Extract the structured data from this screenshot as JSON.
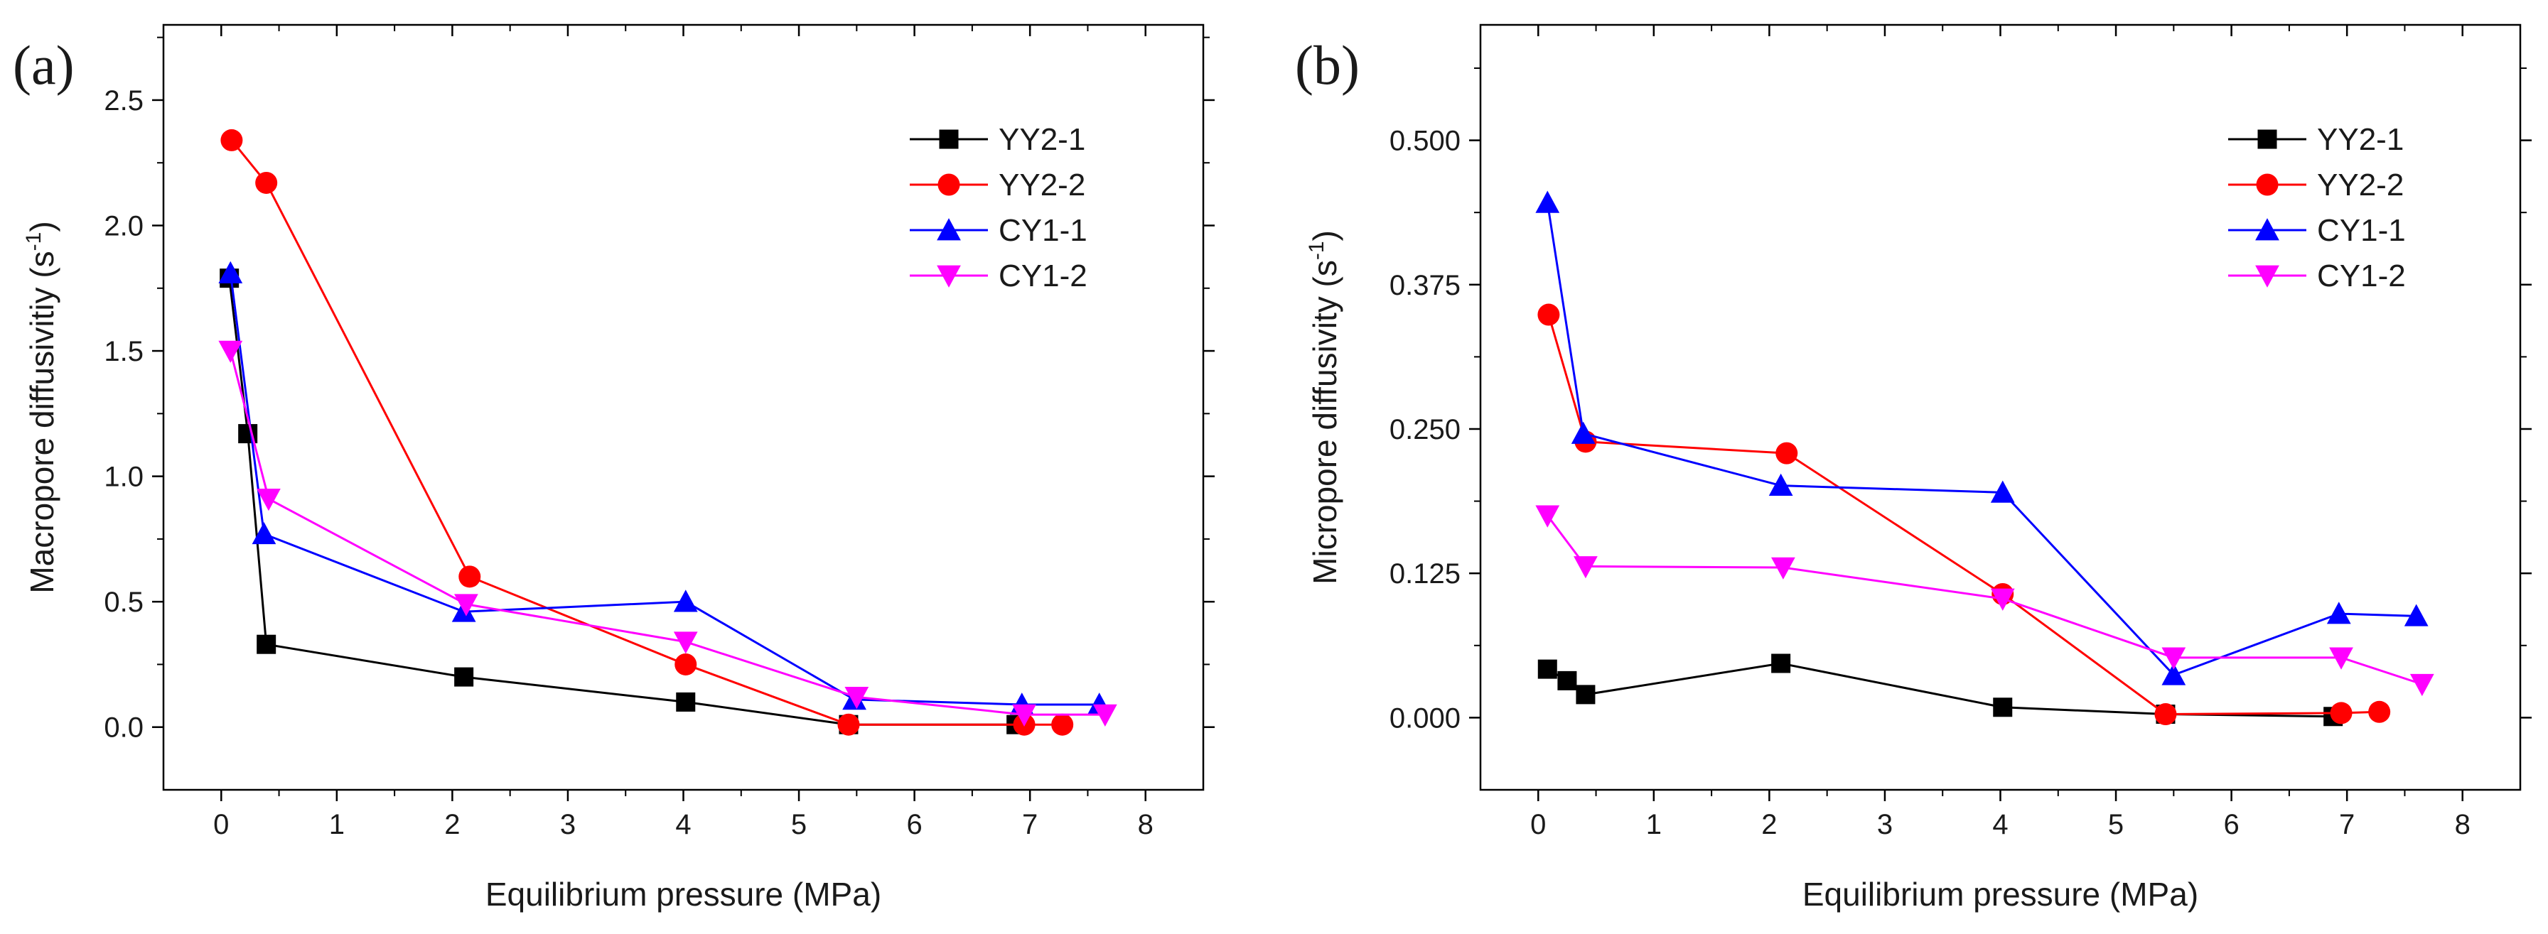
{
  "chart_data": [
    {
      "type": "line",
      "panel_label": "(a)",
      "xlabel": "Equilibrium pressure (MPa)",
      "ylabel": "Macropore diffusivitiy (s",
      "ylabel_sup": "-1",
      "ylabel_close": ")",
      "xlim": [
        -0.5,
        8.5
      ],
      "ylim": [
        -0.25,
        2.8
      ],
      "xticks": [
        0,
        1,
        2,
        3,
        4,
        5,
        6,
        7,
        8
      ],
      "xtick_labels": [
        "0",
        "1",
        "2",
        "3",
        "4",
        "5",
        "6",
        "7",
        "8"
      ],
      "yticks": [
        0,
        0.5,
        1.0,
        1.5,
        2.0,
        2.5
      ],
      "ytick_labels": [
        "0.0",
        "0.5",
        "1.0",
        "1.5",
        "2.0",
        "2.5"
      ],
      "legend_position": "top-right",
      "series": [
        {
          "name": "YY2-1",
          "color": "#000000",
          "marker": "square",
          "x": [
            0.07,
            0.23,
            0.39,
            2.1,
            4.02,
            5.43,
            6.88
          ],
          "y": [
            1.79,
            1.17,
            0.33,
            0.2,
            0.1,
            0.01,
            0.01
          ]
        },
        {
          "name": "YY2-2",
          "color": "#ff0000",
          "marker": "circle",
          "x": [
            0.09,
            0.39,
            2.15,
            4.02,
            5.43,
            6.95,
            7.28
          ],
          "y": [
            2.34,
            2.17,
            0.6,
            0.25,
            0.01,
            0.01,
            0.01
          ]
        },
        {
          "name": "CY1-1",
          "color": "#0000ff",
          "marker": "triangle-up",
          "x": [
            0.08,
            0.37,
            2.1,
            4.02,
            5.48,
            6.93,
            7.6
          ],
          "y": [
            1.81,
            0.77,
            0.46,
            0.5,
            0.11,
            0.09,
            0.09
          ]
        },
        {
          "name": "CY1-2",
          "color": "#ff00ff",
          "marker": "triangle-down",
          "x": [
            0.08,
            0.41,
            2.12,
            4.02,
            5.5,
            6.95,
            7.65
          ],
          "y": [
            1.5,
            0.91,
            0.49,
            0.34,
            0.12,
            0.05,
            0.05
          ]
        }
      ]
    },
    {
      "type": "line",
      "panel_label": "(b)",
      "xlabel": "Equilibrium pressure (MPa)",
      "ylabel": "Micropore diffusivity (s",
      "ylabel_sup": "-1",
      "ylabel_close": ")",
      "xlim": [
        -0.5,
        8.5
      ],
      "ylim": [
        -0.0625,
        0.6
      ],
      "xticks": [
        0,
        1,
        2,
        3,
        4,
        5,
        6,
        7,
        8
      ],
      "xtick_labels": [
        "0",
        "1",
        "2",
        "3",
        "4",
        "5",
        "6",
        "7",
        "8"
      ],
      "yticks": [
        0,
        0.125,
        0.25,
        0.375,
        0.5
      ],
      "ytick_labels": [
        "0.000",
        "0.125",
        "0.250",
        "0.375",
        "0.500"
      ],
      "legend_position": "top-right",
      "series": [
        {
          "name": "YY2-1",
          "color": "#000000",
          "marker": "square",
          "x": [
            0.08,
            0.25,
            0.41,
            2.1,
            4.02,
            5.43,
            6.88
          ],
          "y": [
            0.042,
            0.032,
            0.02,
            0.047,
            0.009,
            0.003,
            0.001
          ]
        },
        {
          "name": "YY2-2",
          "color": "#ff0000",
          "marker": "circle",
          "x": [
            0.09,
            0.41,
            2.15,
            4.02,
            5.43,
            6.95,
            7.28
          ],
          "y": [
            0.349,
            0.239,
            0.229,
            0.107,
            0.003,
            0.004,
            0.005
          ]
        },
        {
          "name": "CY1-1",
          "color": "#0000ff",
          "marker": "triangle-up",
          "x": [
            0.08,
            0.39,
            2.1,
            4.02,
            5.5,
            6.93,
            7.6
          ],
          "y": [
            0.446,
            0.246,
            0.201,
            0.195,
            0.037,
            0.09,
            0.088
          ]
        },
        {
          "name": "CY1-2",
          "color": "#ff00ff",
          "marker": "triangle-down",
          "x": [
            0.08,
            0.41,
            2.12,
            4.02,
            5.5,
            6.95,
            7.65
          ],
          "y": [
            0.175,
            0.131,
            0.13,
            0.103,
            0.052,
            0.052,
            0.029
          ]
        }
      ]
    }
  ]
}
